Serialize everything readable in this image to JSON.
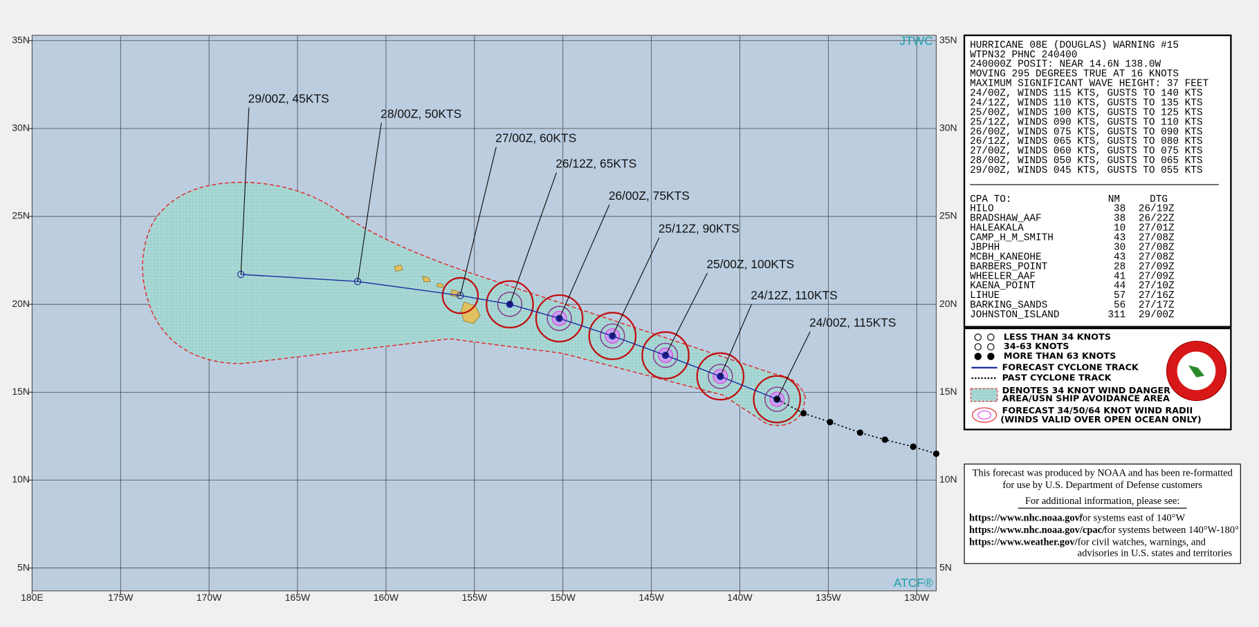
{
  "map": {
    "corner_top": "JTWC",
    "corner_bottom": "ATCF®",
    "xlim": [
      180,
      128.9
    ],
    "ylim": [
      3.7,
      35.3
    ],
    "xticks": [
      {
        "value": 180,
        "label": "180E"
      },
      {
        "value": 175,
        "label": "175W"
      },
      {
        "value": 170,
        "label": "170W"
      },
      {
        "value": 165,
        "label": "165W"
      },
      {
        "value": 160,
        "label": "160W"
      },
      {
        "value": 155,
        "label": "155W"
      },
      {
        "value": 150,
        "label": "150W"
      },
      {
        "value": 145,
        "label": "145W"
      },
      {
        "value": 140,
        "label": "140W"
      },
      {
        "value": 135,
        "label": "135W"
      },
      {
        "value": 130,
        "label": "130W"
      }
    ],
    "yticks": [
      {
        "value": 35,
        "label": "35N"
      },
      {
        "value": 30,
        "label": "30N"
      },
      {
        "value": 25,
        "label": "25N"
      },
      {
        "value": 20,
        "label": "20N"
      },
      {
        "value": 15,
        "label": "15N"
      },
      {
        "value": 10,
        "label": "10N"
      },
      {
        "value": 5,
        "label": "5N"
      }
    ],
    "forecast": [
      {
        "label": "24/00Z, 115KTS",
        "lon": 137.9,
        "lat": 14.6
      },
      {
        "label": "24/12Z, 110KTS",
        "lon": 141.1,
        "lat": 15.9
      },
      {
        "label": "25/00Z, 100KTS",
        "lon": 144.2,
        "lat": 17.1
      },
      {
        "label": "25/12Z,  90KTS",
        "lon": 147.2,
        "lat": 18.2
      },
      {
        "label": "26/00Z,  75KTS",
        "lon": 150.2,
        "lat": 19.2
      },
      {
        "label": "26/12Z,  65KTS",
        "lon": 153.0,
        "lat": 20.0
      },
      {
        "label": "27/00Z,  60KTS",
        "lon": 155.8,
        "lat": 20.5
      },
      {
        "label": "28/00Z,  50KTS",
        "lon": 161.6,
        "lat": 21.3
      },
      {
        "label": "29/00Z,  45KTS",
        "lon": 168.2,
        "lat": 21.7
      }
    ],
    "past": [
      {
        "lon": 136.4,
        "lat": 13.8
      },
      {
        "lon": 134.9,
        "lat": 13.3
      },
      {
        "lon": 133.2,
        "lat": 12.7
      },
      {
        "lon": 131.8,
        "lat": 12.3
      },
      {
        "lon": 130.2,
        "lat": 11.9
      },
      {
        "lon": 128.9,
        "lat": 11.5
      }
    ]
  },
  "warning": {
    "lines": [
      "HURRICANE 08E (DOUGLAS) WARNING #15",
      "WTPN32 PHNC 240400",
      "240000Z POSIT: NEAR 14.6N 138.0W",
      "MOVING 295 DEGREES TRUE AT 16 KNOTS",
      "MAXIMUM SIGNIFICANT WAVE HEIGHT: 37 FEET",
      "24/00Z, WINDS 115 KTS, GUSTS TO 140 KTS",
      "24/12Z, WINDS 110 KTS, GUSTS TO 135 KTS",
      "25/00Z, WINDS 100 KTS, GUSTS TO 125 KTS",
      "25/12Z, WINDS 090 KTS, GUSTS TO 110 KTS",
      "26/00Z, WINDS 075 KTS, GUSTS TO 090 KTS",
      "26/12Z, WINDS 065 KTS, GUSTS TO 080 KTS",
      "27/00Z, WINDS 060 KTS, GUSTS TO 075 KTS",
      "28/00Z, WINDS 050 KTS, GUSTS TO 065 KTS",
      "29/00Z, WINDS 045 KTS, GUSTS TO 055 KTS"
    ]
  },
  "cpa": {
    "header": [
      "CPA TO:",
      "NM",
      "DTG"
    ],
    "rows": [
      [
        "HILO",
        38,
        "26/19Z"
      ],
      [
        "BRADSHAW_AAF",
        38,
        "26/22Z"
      ],
      [
        "HALEAKALA",
        10,
        "27/01Z"
      ],
      [
        "CAMP_H_M_SMITH",
        43,
        "27/08Z"
      ],
      [
        "JBPHH",
        30,
        "27/08Z"
      ],
      [
        "MCBH_KANEOHE",
        43,
        "27/08Z"
      ],
      [
        "BARBERS_POINT",
        28,
        "27/09Z"
      ],
      [
        "WHEELER_AAF",
        41,
        "27/09Z"
      ],
      [
        "KAENA_POINT",
        44,
        "27/10Z"
      ],
      [
        "LIHUE",
        57,
        "27/16Z"
      ],
      [
        "BARKING_SANDS",
        56,
        "27/17Z"
      ],
      [
        "JOHNSTON_ISLAND",
        311,
        "29/00Z"
      ]
    ]
  },
  "legend": {
    "items": [
      "LESS THAN 34 KNOTS",
      "34-63 KNOTS",
      "MORE THAN 63 KNOTS",
      "FORECAST CYCLONE TRACK",
      "PAST CYCLONE TRACK",
      "DENOTES 34 KNOT WIND DANGER",
      "AREA/USN SHIP AVOIDANCE AREA",
      "FORECAST 34/50/64 KNOT WIND RADII",
      "(WINDS VALID OVER OPEN OCEAN ONLY)"
    ]
  },
  "notice": {
    "lines": [
      "This forecast was produced by NOAA and has been re-formatted",
      "for use by U.S. Department of Defense customers",
      "For additional information, please see:"
    ],
    "links": [
      {
        "url": "https://www.nhc.noaa.gov/",
        "text": "for systems east of 140°W"
      },
      {
        "url": "https://www.nhc.noaa.gov/cpac/",
        "text": "for systems between 140°W-180°"
      },
      {
        "url": "https://www.weather.gov/",
        "text": "for civil watches, warnings, and"
      }
    ],
    "tail": "advisories in U.S. states and territories"
  }
}
